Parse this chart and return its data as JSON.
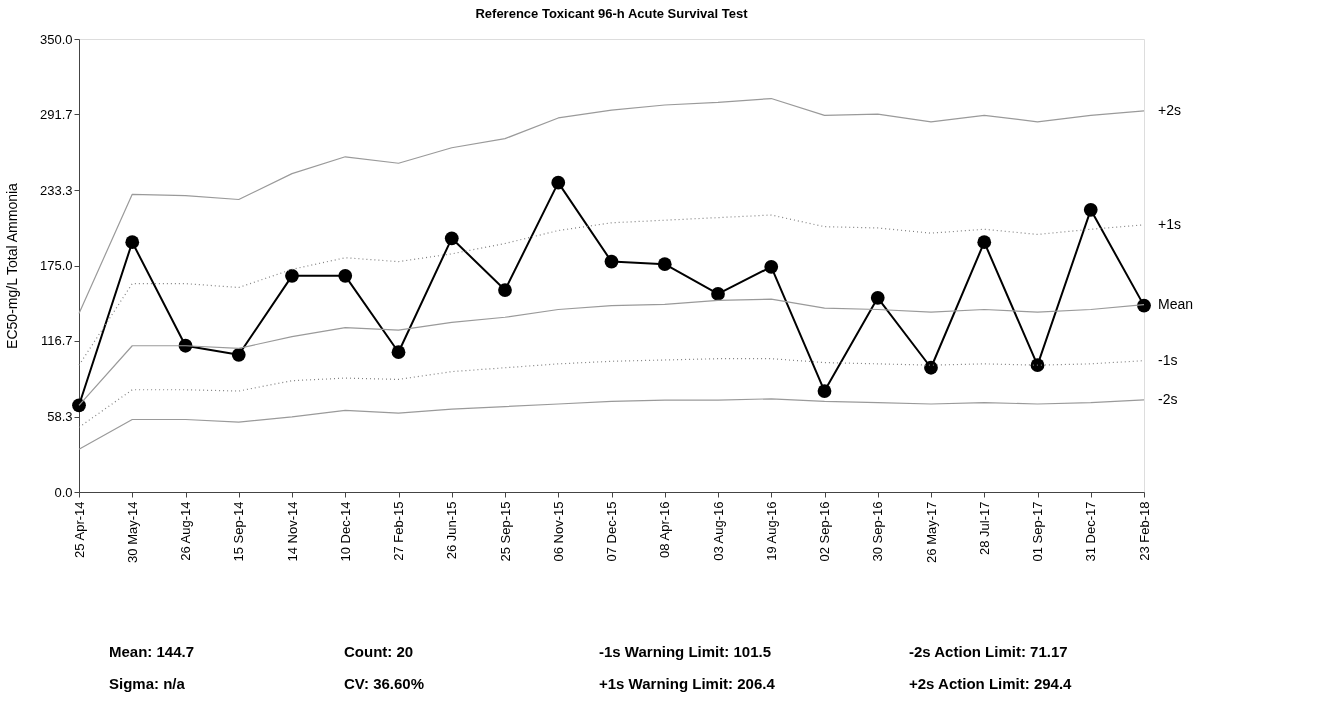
{
  "chart_data": {
    "type": "line",
    "title": "Reference Toxicant 96-h Acute Survival Test",
    "ylabel": "EC50-mg/L Total Ammonia",
    "categories": [
      "25 Apr-14",
      "30 May-14",
      "26 Aug-14",
      "15 Sep-14",
      "14 Nov-14",
      "10 Dec-14",
      "27 Feb-15",
      "26 Jun-15",
      "25 Sep-15",
      "06 Nov-15",
      "07 Dec-15",
      "08 Apr-16",
      "03 Aug-16",
      "19 Aug-16",
      "02 Sep-16",
      "30 Sep-16",
      "26 May-17",
      "28 Jul-17",
      "01 Sep-17",
      "31 Dec-17",
      "23 Feb-18"
    ],
    "series": [
      {
        "color": "#000000",
        "marker": "circle",
        "line_style": "solid",
        "values": [
          67,
          193,
          113,
          106,
          167,
          167,
          108,
          196,
          156,
          239,
          178,
          176,
          153,
          174,
          78,
          150,
          96,
          193,
          98,
          218,
          144
        ]
      },
      {
        "name": "+2s",
        "color": "#9a9a9a",
        "marker": "none",
        "line_style": "solid",
        "values": [
          138,
          230,
          229,
          226,
          246,
          259,
          254,
          266,
          273,
          289,
          295,
          299,
          301,
          304,
          291,
          292,
          286,
          291,
          286,
          291,
          294.4
        ]
      },
      {
        "name": "+1s",
        "color": "#808080",
        "marker": "none",
        "line_style": "dotted",
        "values": [
          98,
          161,
          161,
          158,
          172,
          181,
          178,
          184,
          192,
          202,
          208,
          210,
          212,
          214,
          205,
          204,
          200,
          203,
          199,
          203,
          206.4
        ]
      },
      {
        "name": "Mean",
        "color": "#9a9a9a",
        "marker": "none",
        "line_style": "solid",
        "values": [
          67,
          113,
          113,
          111,
          120,
          127,
          125,
          131,
          135,
          141,
          144,
          145,
          148,
          149,
          142,
          141,
          139,
          141,
          139,
          141,
          144.7
        ]
      },
      {
        "name": "-1s",
        "color": "#808080",
        "marker": "none",
        "line_style": "dotted",
        "values": [
          50,
          79,
          79,
          78,
          86,
          88,
          87,
          93,
          96,
          99,
          101,
          102,
          103,
          103,
          100,
          99,
          98,
          99,
          98,
          99,
          101.5
        ]
      },
      {
        "name": "-2s",
        "color": "#9a9a9a",
        "marker": "none",
        "line_style": "solid",
        "values": [
          33,
          56,
          56,
          54,
          58,
          63,
          61,
          64,
          66,
          68,
          70,
          71,
          71,
          72,
          70,
          69,
          68,
          69,
          68,
          69,
          71.2
        ]
      }
    ],
    "ylim": [
      0,
      350
    ],
    "yticks": [
      {
        "value": 0,
        "label": "0.0"
      },
      58.3,
      116.7,
      {
        "value": 175,
        "label": "175.0"
      },
      233.3,
      291.7,
      {
        "value": 350,
        "label": "350.0"
      }
    ],
    "grid": false,
    "legend": false,
    "annotations": [
      "Mean:  144.7",
      "Count:  20",
      "-1s Warning Limit:  101.5",
      "-2s Action Limit:  71.17",
      "Sigma:  n/a",
      "CV:  36.60%",
      "+1s Warning Limit:  206.4",
      "+2s Action Limit:  294.4"
    ]
  }
}
